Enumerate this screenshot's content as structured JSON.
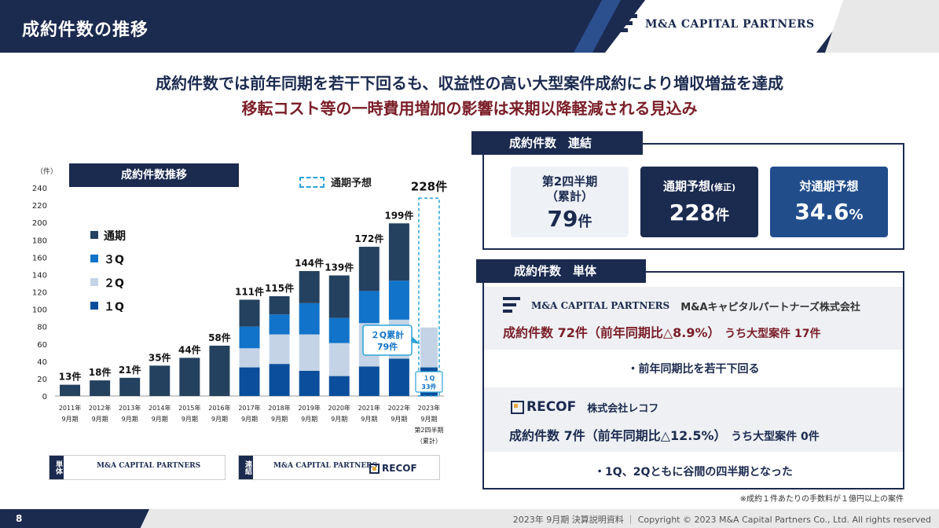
{
  "header": {
    "title": "成約件数の推移",
    "brand": "M&A CAPITAL PARTNERS"
  },
  "headline": {
    "line1": "成約件数では前年同期を若干下回るも、収益性の高い大型案件成約により増収増益を達成",
    "line2": "移転コスト等の一時費用増加の影響は来期以降軽減される見込み"
  },
  "chart_panel": {
    "title": "成約件数推移",
    "forecast_legend": "通期予想"
  },
  "chart_data": {
    "type": "bar",
    "unit_label": "（件）",
    "ylim": [
      0,
      240
    ],
    "yticks": [
      0,
      20,
      40,
      60,
      80,
      100,
      120,
      140,
      160,
      180,
      200,
      220,
      240
    ],
    "categories": [
      [
        "2011年",
        "9月期"
      ],
      [
        "2012年",
        "9月期"
      ],
      [
        "2013年",
        "9月期"
      ],
      [
        "2014年",
        "9月期"
      ],
      [
        "2015年",
        "9月期"
      ],
      [
        "2016年",
        "9月期"
      ],
      [
        "2017年",
        "9月期"
      ],
      [
        "2018年",
        "9月期"
      ],
      [
        "2019年",
        "9月期"
      ],
      [
        "2020年",
        "9月期"
      ],
      [
        "2021年",
        "9月期"
      ],
      [
        "2022年",
        "9月期"
      ],
      [
        "2023年",
        "9月期",
        "第2四半期",
        "（累計）"
      ]
    ],
    "series": [
      {
        "name": "１Q",
        "color": "#0b4f9c",
        "values": [
          null,
          null,
          null,
          null,
          null,
          null,
          33,
          37,
          29,
          23,
          34,
          43,
          33
        ]
      },
      {
        "name": "２Q",
        "color": "#c4d4e6",
        "values": [
          null,
          null,
          null,
          null,
          null,
          null,
          22,
          34,
          42,
          38,
          50,
          45,
          46
        ]
      },
      {
        "name": "３Q",
        "color": "#1173c9",
        "values": [
          null,
          null,
          null,
          null,
          null,
          null,
          25,
          23,
          36,
          29,
          37,
          45,
          null
        ]
      },
      {
        "name": "通期",
        "color": "#24415f",
        "values": [
          13,
          18,
          21,
          35,
          44,
          58,
          31,
          21,
          37,
          49,
          51,
          66,
          null
        ]
      }
    ],
    "totals": [
      "13件",
      "18件",
      "21件",
      "35件",
      "44件",
      "58件",
      "111件",
      "115件",
      "144件",
      "139件",
      "172件",
      "199件",
      "228件"
    ],
    "forecast": {
      "value": 228,
      "label": "228件"
    },
    "callouts": {
      "q2_cum": "２Q累計",
      "q2_val": "79件",
      "q1": "１Q",
      "q1_val": "33件"
    }
  },
  "chart_footer": {
    "solo_tag": "単体",
    "consol_tag": "連結",
    "brand": "M&A CAPITAL PARTNERS",
    "recof": "RECOF"
  },
  "consolidated": {
    "title": "成約件数　連結",
    "kpis": [
      {
        "label1": "第2四半期",
        "label2": "（累計）",
        "value": "79",
        "unit": "件"
      },
      {
        "label1": "通期予想",
        "label1b": "(修正)",
        "value": "228",
        "unit": "件"
      },
      {
        "label1": "対通期予想",
        "value": "34.6",
        "unit": "%"
      }
    ]
  },
  "standalone": {
    "title": "成約件数　単体",
    "mcp": {
      "brand": "M&A CAPITAL PARTNERS",
      "company": "M&Aキャピタルパートナーズ株式会社",
      "line": "成約件数 72件（前年同期比△8.9%）",
      "tail": "うち大型案件 17件",
      "bullet": "・前年同期比を若干下回る"
    },
    "recof": {
      "brand": "RECOF",
      "company": "株式会社レコフ",
      "line": "成約件数 7件（前年同期比△12.5%）",
      "tail": "うち大型案件 0件",
      "bullet": "・1Q、2Qともに谷間の四半期となった"
    }
  },
  "note": "※成約１件あたりの手数料が１億円以上の案件",
  "footer": {
    "page": "8",
    "copyright": "2023年 9月期 決算説明資料 ｜ Copyright © 2023 M&A Capital Partners Co., Ltd. All rights reserved"
  }
}
